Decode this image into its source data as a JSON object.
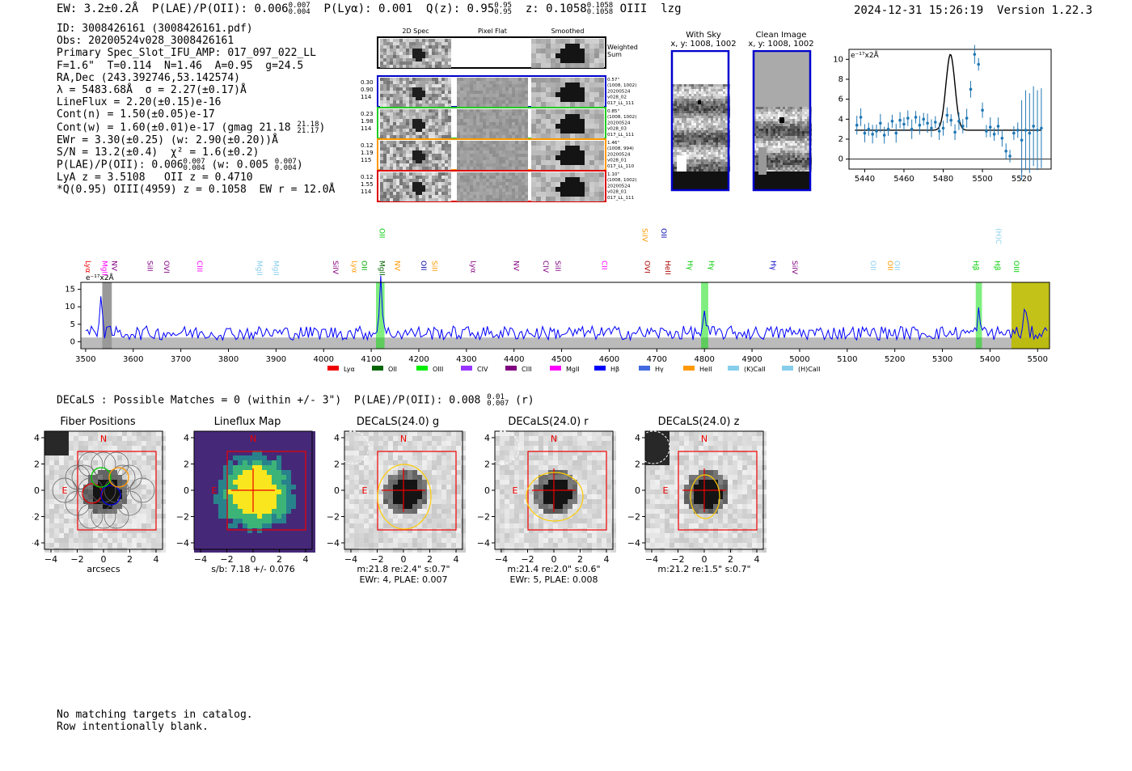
{
  "header": {
    "ew": "EW: 3.2±0.2Å",
    "plae_label": "P(LAE)/P(OII): 0.006",
    "plae_hi": "0.007",
    "plae_lo": "0.004",
    "plya": "P(Lyα): 0.001",
    "qz": "Q(z): 0.95",
    "qz_hi": "0.95",
    "qz_lo": "0.95",
    "z": "z: 0.1058",
    "z_hi": "0.1058",
    "z_lo": "0.1058",
    "line": "OIII",
    "flag": "lzg",
    "timestamp": "2024-12-31 15:26:19",
    "version": "Version 1.22.3"
  },
  "info": {
    "id": "ID: 3008426161 (3008426161.pdf)",
    "obs": "Obs: 20200524v028_3008426161",
    "primary": "Primary Spec_Slot_IFU_AMP: 017_097_022_LL",
    "params": "F=1.6\"  T=0.114  N=1.46  A=0.95  g=24.5",
    "radec": "RA,Dec (243.392746,53.142574)",
    "lambda": "λ = 5483.68Å  σ = 2.27(±0.17)Å",
    "lineflux": "LineFlux = 2.20(±0.15)e-16",
    "contn": "Cont(n) = 1.50(±0.05)e-17",
    "contw": "Cont(w) = 1.60(±0.01)e-17 (gmag 21.18",
    "gmag_hi": "21.18",
    "gmag_lo": "21.17",
    "ewr": "EWr = 3.30(±0.25) (w: 2.90(±0.20))Å",
    "sn": "S/N = 13.2(±0.4)  χ² = 1.6(±0.2)",
    "plae": "P(LAE)/P(OII): 0.006",
    "plae_hi": "0.007",
    "plae_lo": "0.004",
    "plae_w": "(w: 0.005",
    "plae_w_hi": "0.007",
    "plae_w_lo": "0.004",
    "lya_z": "LyA z = 3.5108   OII z = 0.4710",
    "q": "*Q(0.95) OIII(4959) z = 0.1058  EW r = 12.0Å"
  },
  "cutouts": {
    "col_titles": [
      "2D Spec",
      "Pixel Flat",
      "Smoothed"
    ],
    "weighted": [
      "Weighted",
      "Sum"
    ],
    "rows": [
      {
        "left": [
          "0.30",
          "0.90",
          "114"
        ],
        "right": [
          "0.57\"",
          "(1008, 1002)",
          "20200524",
          "v028_02",
          "017_LL_111"
        ],
        "color": "#0000cc"
      },
      {
        "left": [
          "0.23",
          "1.98",
          "114"
        ],
        "right": [
          "0.85\"",
          "(1008, 1002)",
          "20200524",
          "v028_03",
          "017_LL_111"
        ],
        "color": "#22cc22"
      },
      {
        "left": [
          "0.12",
          "1.19",
          "115"
        ],
        "right": [
          "1.46\"",
          "(1008, 994)",
          "20200524",
          "v028_01",
          "017_LL_110"
        ],
        "color": "#ff9900"
      },
      {
        "left": [
          "0.12",
          "1.55",
          "114"
        ],
        "right": [
          "1.10\"",
          "(1008, 1002)",
          "20200524",
          "v028_01",
          "017_LL_111"
        ],
        "color": "#dd0000"
      }
    ]
  },
  "sky": {
    "with_sky_title": "With Sky",
    "with_sky_xy": "x, y: 1008, 1002",
    "clean_title": "Clean Image",
    "clean_xy": "x, y: 1008, 1002"
  },
  "colors": {
    "spectrum": "#0000ff",
    "fit": "#1f77b4",
    "highlight": "#00dd00",
    "olive": "#bbbb00",
    "red": "#ee0000",
    "ellipse": "#ffcc00"
  },
  "chart_data": [
    {
      "type": "scatter",
      "unit_label": "e⁻¹⁷x2Å",
      "xlim": [
        5432,
        5535
      ],
      "ylim": [
        -1,
        11
      ],
      "x_ticks": [
        5440,
        5460,
        5480,
        5500,
        5520
      ],
      "y_ticks": [
        0,
        2,
        4,
        6,
        8,
        10
      ],
      "x": [
        5436,
        5438,
        5440,
        5442,
        5444,
        5446,
        5448,
        5450,
        5452,
        5454,
        5456,
        5458,
        5460,
        5462,
        5464,
        5466,
        5468,
        5470,
        5472,
        5474,
        5476,
        5478,
        5480,
        5482,
        5484,
        5486,
        5488,
        5490,
        5492,
        5494,
        5496,
        5498,
        5500,
        5502,
        5504,
        5506,
        5508,
        5510,
        5512,
        5514,
        5516,
        5518,
        5520,
        5522,
        5524,
        5526,
        5528,
        5530
      ],
      "y": [
        3.4,
        4.2,
        2.6,
        3.0,
        2.5,
        2.8,
        3.6,
        2.4,
        3.0,
        3.8,
        2.6,
        3.9,
        3.5,
        4.1,
        3.0,
        4.2,
        3.4,
        4.0,
        3.6,
        3.1,
        3.7,
        2.8,
        3.1,
        4.4,
        3.9,
        2.7,
        3.8,
        3.3,
        4.1,
        7.0,
        10.5,
        9.5,
        4.9,
        2.8,
        3.2,
        2.5,
        3.3,
        2.1,
        0.8,
        0.3,
        2.6,
        2.9,
        1.9,
        2.9,
        2.6,
        3.3,
        2.9,
        3.1
      ],
      "fit_continuum": 2.9,
      "fit_peak_x": 5483.68,
      "fit_sigma": 2.27,
      "fit_amp": 7.6
    },
    {
      "type": "line",
      "unit_label": "e⁻¹⁷x2Å",
      "xlim": [
        3490,
        5525
      ],
      "ylim": [
        -2,
        17
      ],
      "x_ticks": [
        3500,
        3600,
        3700,
        3800,
        3900,
        4000,
        4100,
        4200,
        4300,
        4400,
        4500,
        4600,
        4700,
        4800,
        4900,
        5000,
        5100,
        5200,
        5300,
        5400,
        5500
      ],
      "y_ticks": [
        0,
        5,
        10,
        15
      ],
      "highlight_regions": [
        [
          4110,
          4128
        ],
        [
          4793,
          4808
        ],
        [
          5370,
          5383
        ]
      ],
      "olive_region": [
        5445,
        5525
      ],
      "grey_region": [
        3535,
        3555
      ],
      "line_peaks": [
        [
          3532,
          11
        ],
        [
          4120,
          16
        ],
        [
          4800,
          5
        ],
        [
          5376,
          6
        ],
        [
          5474,
          7
        ]
      ],
      "line_labels": [
        {
          "x": 3500,
          "name": "Lyα",
          "color": "#ee0000",
          "row": 1
        },
        {
          "x": 3535,
          "name": "MgII",
          "color": "#ff00ff",
          "row": 1
        },
        {
          "x": 3555,
          "name": "NV",
          "color": "#800080",
          "row": 1
        },
        {
          "x": 3630,
          "name": "SiII",
          "color": "#800080",
          "row": 1
        },
        {
          "x": 3665,
          "name": "OVI",
          "color": "#800080",
          "row": 1
        },
        {
          "x": 3735,
          "name": "CIII",
          "color": "#ff00ff",
          "row": 1
        },
        {
          "x": 3860,
          "name": "MgII",
          "color": "#87ceeb",
          "row": 1
        },
        {
          "x": 3895,
          "name": "MgII",
          "color": "#87ceeb",
          "row": 1
        },
        {
          "x": 4020,
          "name": "SiIV",
          "color": "#800080",
          "row": 1
        },
        {
          "x": 4060,
          "name": "Lyα",
          "color": "#ff9900",
          "row": 1
        },
        {
          "x": 4080,
          "name": "OII",
          "color": "#00aa00",
          "row": 1
        },
        {
          "x": 4118,
          "name": "MgII",
          "color": "#006400",
          "row": 1
        },
        {
          "x": 4150,
          "name": "NV",
          "color": "#ff9900",
          "row": 1
        },
        {
          "x": 4205,
          "name": "OII",
          "color": "#0000aa",
          "row": 1
        },
        {
          "x": 4228,
          "name": "SiII",
          "color": "#ff9900",
          "row": 1
        },
        {
          "x": 4310,
          "name": "Lyα",
          "color": "#800080",
          "row": 1
        },
        {
          "x": 4400,
          "name": "NV",
          "color": "#800080",
          "row": 1
        },
        {
          "x": 4462,
          "name": "CIV",
          "color": "#800080",
          "row": 1
        },
        {
          "x": 4487,
          "name": "SiII",
          "color": "#800080",
          "row": 1
        },
        {
          "x": 4585,
          "name": "CII",
          "color": "#ff00ff",
          "row": 1
        },
        {
          "x": 4675,
          "name": "OVI",
          "color": "#aa0000",
          "row": 1
        },
        {
          "x": 4718,
          "name": "HeII",
          "color": "#aa0000",
          "row": 1
        },
        {
          "x": 4765,
          "name": "Hγ",
          "color": "#00cc00",
          "row": 1
        },
        {
          "x": 4810,
          "name": "Hγ",
          "color": "#00cc00",
          "row": 1
        },
        {
          "x": 4940,
          "name": "Hγ",
          "color": "#0000cc",
          "row": 1
        },
        {
          "x": 4985,
          "name": "SiIV",
          "color": "#800080",
          "row": 1
        },
        {
          "x": 5150,
          "name": "OII",
          "color": "#87ceeb",
          "row": 1
        },
        {
          "x": 5185,
          "name": "OII",
          "color": "#ff9900",
          "row": 1
        },
        {
          "x": 5200,
          "name": "OII",
          "color": "#87ceeb",
          "row": 1
        },
        {
          "x": 5365,
          "name": "Hβ",
          "color": "#00cc00",
          "row": 1
        },
        {
          "x": 5410,
          "name": "Hβ",
          "color": "#00cc00",
          "row": 1
        },
        {
          "x": 5450,
          "name": "OIII",
          "color": "#00cc00",
          "row": 1
        },
        {
          "x": 4118,
          "name": "OII",
          "color": "#00cc00",
          "row": 0
        },
        {
          "x": 4670,
          "name": "SiIV",
          "color": "#ff9900",
          "row": 0
        },
        {
          "x": 4710,
          "name": "OII",
          "color": "#0000aa",
          "row": 0
        },
        {
          "x": 5413,
          "name": "(H)C",
          "color": "#87ceeb",
          "row": 0
        }
      ],
      "legend": [
        {
          "name": "Lyα",
          "color": "#ee0000"
        },
        {
          "name": "OII",
          "color": "#006400"
        },
        {
          "name": "OIII",
          "color": "#00ee00"
        },
        {
          "name": "CIV",
          "color": "#9933ff"
        },
        {
          "name": "CIII",
          "color": "#800080"
        },
        {
          "name": "MgII",
          "color": "#ff00ff"
        },
        {
          "name": "Hβ",
          "color": "#0000ff"
        },
        {
          "name": "Hγ",
          "color": "#4169e1"
        },
        {
          "name": "HeII",
          "color": "#ff9900"
        },
        {
          "name": "(K)CaII",
          "color": "#87ceeb"
        },
        {
          "name": "(H)CaII",
          "color": "#87ceeb"
        }
      ]
    }
  ],
  "decals": {
    "summary": "DECaLS : Possible Matches = 0 (within +/- 3\")  P(LAE)/P(OII): 0.008",
    "plae_hi": "0.01",
    "plae_lo": "0.007",
    "band": "(r)",
    "panels": [
      {
        "title": "Fiber Positions",
        "caption1": "arcsecs",
        "caption2": ""
      },
      {
        "title": "Lineflux Map",
        "caption1": "s/b: 7.18 +/- 0.076",
        "caption2": ""
      },
      {
        "title": "DECaLS(24.0) g",
        "caption1": "m:21.8   re:2.4\"   s:0.7\"",
        "caption2": "EWr: 4, PLAE: 0.007"
      },
      {
        "title": "DECaLS(24.0) r",
        "caption1": "m:21.4   re:2.0\"   s:0.6\"",
        "caption2": "EWr: 5, PLAE: 0.008"
      },
      {
        "title": "DECaLS(24.0) z",
        "caption1": "m:21.2   re:1.5\"   s:0.7\"",
        "caption2": ""
      }
    ],
    "ticks": [
      "−4",
      "−2",
      "0",
      "2",
      "4"
    ],
    "north": "N",
    "east": "E"
  },
  "footer": {
    "line1": "No matching targets in catalog.",
    "line2": "Row intentionally blank."
  }
}
